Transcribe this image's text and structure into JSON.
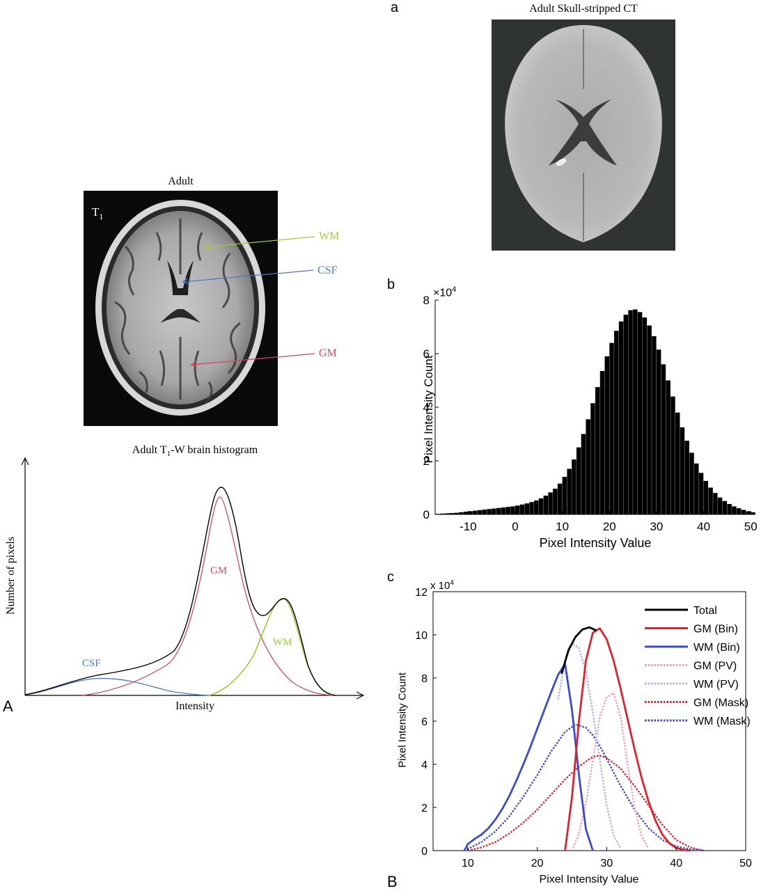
{
  "panel_A": {
    "letter": "A",
    "mri": {
      "title": "Adult",
      "modality": "T",
      "modality_sub": "1",
      "labels": [
        {
          "text": "WM",
          "color": "#9acd32"
        },
        {
          "text": "CSF",
          "color": "#4a78c8"
        },
        {
          "text": "GM",
          "color": "#dd4455"
        }
      ]
    },
    "histogram": {
      "title_pre": "Adult T",
      "title_sub": "1",
      "title_post": "-W brain histogram",
      "xlabel": "Intensity",
      "ylabel": "Number of pixels",
      "curve_labels": [
        {
          "text": "CSF",
          "color": "#4a78c8"
        },
        {
          "text": "GM",
          "color": "#dd4455"
        },
        {
          "text": "WM",
          "color": "#9acd32"
        }
      ]
    }
  },
  "panel_B": {
    "letter": "B",
    "sub_a": {
      "letter": "a",
      "title": "Adult Skull-stripped CT"
    },
    "sub_b": {
      "letter": "b",
      "multiplier_base": "×10",
      "multiplier_exp": "4"
    },
    "sub_c": {
      "letter": "c",
      "multiplier_base": "x 10",
      "multiplier_exp": "4"
    }
  },
  "chart_data": [
    {
      "id": "b",
      "type": "bar",
      "xlabel": "Pixel Intensity Value",
      "ylabel": "Pixel Intensity Count",
      "xlim": [
        -17,
        51
      ],
      "ylim": [
        0,
        8
      ],
      "y_multiplier": "×10^4",
      "xticks": [
        "-10",
        "0",
        "10",
        "20",
        "30",
        "40",
        "50"
      ],
      "yticks": [
        "0",
        "2",
        "4",
        "6",
        "8"
      ],
      "bin_width": 1,
      "x": [
        -17,
        -16,
        -15,
        -14,
        -13,
        -12,
        -11,
        -10,
        -9,
        -8,
        -7,
        -6,
        -5,
        -4,
        -3,
        -2,
        -1,
        0,
        1,
        2,
        3,
        4,
        5,
        6,
        7,
        8,
        9,
        10,
        11,
        12,
        13,
        14,
        15,
        16,
        17,
        18,
        19,
        20,
        21,
        22,
        23,
        24,
        25,
        26,
        27,
        28,
        29,
        30,
        31,
        32,
        33,
        34,
        35,
        36,
        37,
        38,
        39,
        40,
        41,
        42,
        43,
        44,
        45,
        46,
        47,
        48,
        49,
        50
      ],
      "values": [
        0.02,
        0.03,
        0.04,
        0.05,
        0.06,
        0.08,
        0.1,
        0.12,
        0.14,
        0.16,
        0.18,
        0.2,
        0.22,
        0.24,
        0.26,
        0.28,
        0.3,
        0.33,
        0.37,
        0.41,
        0.46,
        0.52,
        0.6,
        0.7,
        0.82,
        0.96,
        1.15,
        1.4,
        1.7,
        2.05,
        2.5,
        3.0,
        3.55,
        4.15,
        4.75,
        5.35,
        5.9,
        6.4,
        6.85,
        7.2,
        7.45,
        7.62,
        7.65,
        7.55,
        7.35,
        7.05,
        6.65,
        6.15,
        5.6,
        5.0,
        4.4,
        3.8,
        3.25,
        2.75,
        2.3,
        1.9,
        1.55,
        1.25,
        1.0,
        0.8,
        0.63,
        0.5,
        0.39,
        0.3,
        0.23,
        0.17,
        0.12,
        0.08
      ]
    },
    {
      "id": "c",
      "type": "line",
      "xlabel": "Pixel Intensity Value",
      "ylabel": "Pixel Intensity Count",
      "xlim": [
        5,
        50
      ],
      "ylim": [
        0,
        12
      ],
      "y_multiplier": "x 10^4",
      "xticks": [
        "10",
        "20",
        "30",
        "40",
        "50"
      ],
      "yticks": [
        "0",
        "2",
        "4",
        "6",
        "8",
        "10",
        "12"
      ],
      "legend_position": "top-right",
      "series": [
        {
          "name": "Total",
          "color": "#000000",
          "style": "solid",
          "x": [
            23.5,
            24.5,
            25.5,
            26.5,
            27.5,
            28.5
          ],
          "y": [
            8.2,
            9.3,
            9.9,
            10.25,
            10.35,
            10.2
          ]
        },
        {
          "name": "GM (Bin)",
          "color": "#e0202a",
          "style": "solid",
          "x": [
            24,
            25,
            26,
            27,
            28,
            29,
            30,
            31,
            32,
            33,
            34,
            35,
            36,
            37,
            38,
            39,
            40,
            41,
            42
          ],
          "y": [
            0,
            2.5,
            6.0,
            8.8,
            10.1,
            10.3,
            9.8,
            8.8,
            7.5,
            6.1,
            4.7,
            3.4,
            2.3,
            1.4,
            0.75,
            0.35,
            0.12,
            0.04,
            0
          ]
        },
        {
          "name": "WM (Bin)",
          "color": "#3a48d8",
          "style": "solid",
          "x": [
            9.5,
            10,
            11,
            12,
            13,
            14,
            15,
            16,
            17,
            18,
            19,
            20,
            21,
            22,
            23,
            24,
            25,
            26,
            27,
            28
          ],
          "y": [
            0,
            0.3,
            0.55,
            0.75,
            1.05,
            1.45,
            1.95,
            2.55,
            3.25,
            4.0,
            4.8,
            5.65,
            6.5,
            7.35,
            8.15,
            8.65,
            6.5,
            3.5,
            1.0,
            0
          ]
        },
        {
          "name": "GM (PV)",
          "color": "#f2a0b8",
          "style": "dotted",
          "x": [
            25,
            26,
            27,
            28,
            29,
            30,
            31,
            32,
            33,
            34,
            35,
            36
          ],
          "y": [
            0,
            0.8,
            2.2,
            4.2,
            6.2,
            7.1,
            7.3,
            6.2,
            4.0,
            2.0,
            0.7,
            0.1
          ]
        },
        {
          "name": "WM (PV)",
          "color": "#b0b0e8",
          "style": "dotted",
          "x": [
            23,
            24,
            25,
            26,
            27,
            28,
            29,
            30,
            31,
            32
          ],
          "y": [
            7.0,
            8.8,
            9.6,
            9.4,
            8.3,
            6.4,
            4.2,
            2.1,
            0.7,
            0.1
          ]
        },
        {
          "name": "GM (Mask)",
          "color": "#e0202a",
          "style": "dotted",
          "x": [
            10,
            12,
            14,
            16,
            18,
            20,
            22,
            24,
            26,
            28,
            29,
            30,
            32,
            34,
            36,
            38,
            40,
            42,
            44
          ],
          "y": [
            0,
            0.15,
            0.4,
            0.8,
            1.3,
            1.9,
            2.6,
            3.3,
            3.9,
            4.35,
            4.4,
            4.3,
            3.8,
            3.0,
            2.1,
            1.2,
            0.5,
            0.15,
            0
          ]
        },
        {
          "name": "WM (Mask)",
          "color": "#3a48d8",
          "style": "dotted",
          "x": [
            9.5,
            12,
            14,
            16,
            18,
            20,
            22,
            24,
            25.5,
            27,
            28,
            29,
            30,
            32,
            34,
            36,
            38,
            40,
            42,
            44
          ],
          "y": [
            0,
            0.4,
            0.9,
            1.6,
            2.5,
            3.5,
            4.6,
            5.5,
            5.85,
            5.7,
            5.35,
            4.85,
            4.25,
            3.0,
            1.9,
            1.05,
            0.5,
            0.2,
            0.06,
            0
          ]
        }
      ]
    }
  ]
}
